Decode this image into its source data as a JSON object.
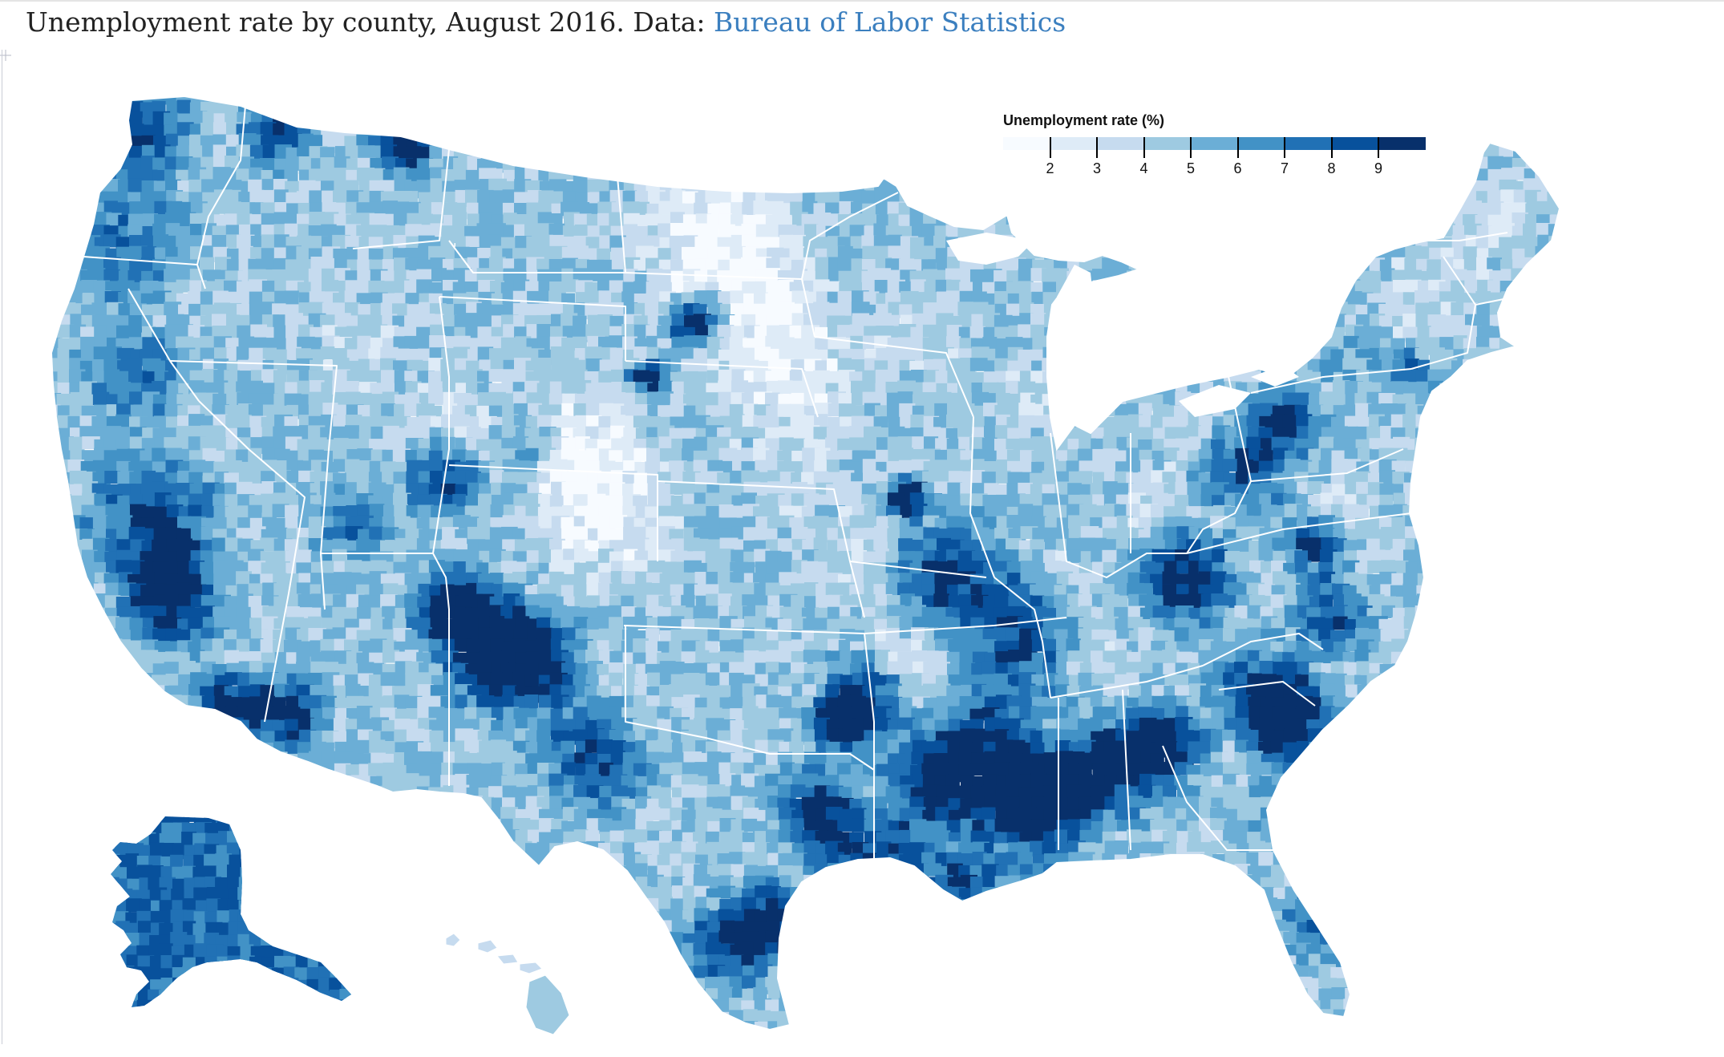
{
  "header": {
    "title_prefix": "Unemployment rate by county, August 2016. Data: ",
    "source_link": "Bureau of Labor Statistics"
  },
  "legend": {
    "title": "Unemployment rate (%)",
    "ticks": [
      "2",
      "3",
      "4",
      "5",
      "6",
      "7",
      "8",
      "9"
    ],
    "tick_values": [
      2,
      3,
      4,
      5,
      6,
      7,
      8,
      9
    ],
    "colors": [
      "#f7fbff",
      "#deebf7",
      "#c6dbef",
      "#9ecae1",
      "#6baed6",
      "#4292c6",
      "#2171b5",
      "#08519c",
      "#08306b"
    ]
  },
  "map": {
    "region": "United States counties (Lower 48, Alaska, Hawaii)",
    "metric": "Unemployment rate (%)",
    "period": "August 2016",
    "colors": {
      "state_border": "#ffffff",
      "low": "#f7fbff",
      "high": "#08306b"
    }
  }
}
